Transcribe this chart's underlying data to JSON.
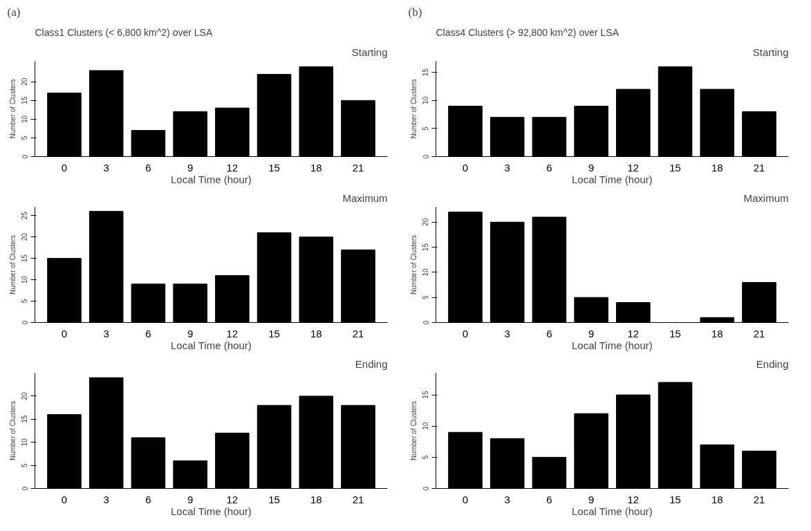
{
  "chart_data": [
    {
      "type": "bar",
      "title": "(a)",
      "subtitle": "Class1 Clusters (< 6,800 km^2) over LSA",
      "annotations": [
        "Starting"
      ],
      "xlabel": "Local Time (hour)",
      "ylabel": "Number of Clusters",
      "categories": [
        "0",
        "3",
        "6",
        "9",
        "12",
        "15",
        "18",
        "21"
      ],
      "values": [
        17,
        23,
        7,
        12,
        13,
        22,
        24,
        15
      ],
      "color": "#000000",
      "ylim": [
        0,
        25.5
      ],
      "yticks": [
        0,
        5,
        10,
        15,
        20
      ],
      "grid": false
    },
    {
      "type": "bar",
      "annotations": [
        "Maximum"
      ],
      "xlabel": "Local Time (hour)",
      "ylabel": "Number of Clusters",
      "categories": [
        "0",
        "3",
        "6",
        "9",
        "12",
        "15",
        "18",
        "21"
      ],
      "values": [
        15,
        26,
        9,
        9,
        11,
        21,
        20,
        17
      ],
      "color": "#000000",
      "ylim": [
        0,
        27
      ],
      "yticks": [
        0,
        5,
        10,
        15,
        20,
        25
      ],
      "grid": false
    },
    {
      "type": "bar",
      "annotations": [
        "Ending"
      ],
      "xlabel": "Local Time (hour)",
      "ylabel": "Number of Clusters",
      "categories": [
        "0",
        "3",
        "6",
        "9",
        "12",
        "15",
        "18",
        "21"
      ],
      "values": [
        16,
        24,
        11,
        6,
        12,
        18,
        20,
        18
      ],
      "color": "#000000",
      "ylim": [
        0,
        25
      ],
      "yticks": [
        0,
        5,
        10,
        15,
        20
      ],
      "grid": false
    },
    {
      "type": "bar",
      "title": "(b)",
      "subtitle": "Class4 Clusters (> 92,800 km^2) over LSA",
      "annotations": [
        "Starting"
      ],
      "xlabel": "Local Time (hour)",
      "ylabel": "Number of Clusters",
      "categories": [
        "0",
        "3",
        "6",
        "9",
        "12",
        "15",
        "18",
        "21"
      ],
      "values": [
        9,
        7,
        7,
        9,
        12,
        16,
        12,
        8
      ],
      "color": "#000000",
      "ylim": [
        0,
        17
      ],
      "yticks": [
        0,
        5,
        10,
        15
      ],
      "grid": false
    },
    {
      "type": "bar",
      "annotations": [
        "Maximum"
      ],
      "xlabel": "Local Time (hour)",
      "ylabel": "Number of Clusters",
      "categories": [
        "0",
        "3",
        "6",
        "9",
        "12",
        "15",
        "18",
        "21"
      ],
      "values": [
        22,
        20,
        21,
        5,
        4,
        0,
        1,
        8
      ],
      "color": "#000000",
      "ylim": [
        0,
        23
      ],
      "yticks": [
        0,
        5,
        10,
        15,
        20
      ],
      "grid": false
    },
    {
      "type": "bar",
      "annotations": [
        "Ending"
      ],
      "xlabel": "Local Time (hour)",
      "ylabel": "Number of Clusters",
      "categories": [
        "0",
        "3",
        "6",
        "9",
        "12",
        "15",
        "18",
        "21"
      ],
      "values": [
        9,
        8,
        5,
        12,
        15,
        17,
        7,
        6
      ],
      "color": "#000000",
      "ylim": [
        0,
        18.5
      ],
      "yticks": [
        0,
        5,
        10,
        15
      ],
      "grid": false
    }
  ]
}
